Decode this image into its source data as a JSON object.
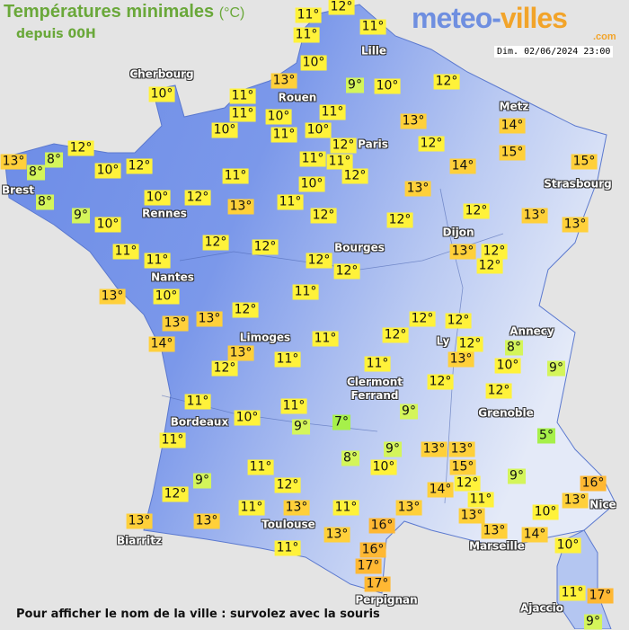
{
  "header": {
    "title": "Températures minimales",
    "unit": "(°C)",
    "subtitle": "depuis 00H",
    "logo_part1": "meteo-",
    "logo_part2": "villes",
    "logo_suffix": ".com",
    "datetime": "Dim. 02/06/2024 23:00"
  },
  "footer": "Pour afficher le nom de la ville : survolez avec la souris",
  "colors": {
    "land_west": "#6b8be6",
    "land_east": "#dfe6f8",
    "sea": "#e4e4e4",
    "temp_5_7": "#a6f04a",
    "temp_8_9": "#d4f55a",
    "temp_10_12": "#fff23a",
    "temp_13_15": "#ffd03a",
    "temp_16_17": "#ffb833",
    "title_green": "#6aa83a",
    "logo_blue": "#6f8fe0",
    "logo_orange": "#f2a42a"
  },
  "cities": [
    "Cherbourg",
    "Lille",
    "Rouen",
    "Paris",
    "Metz",
    "Strasbourg",
    "Brest",
    "Rennes",
    "Dijon",
    "Bourges",
    "Nantes",
    "Limoges",
    "Ly",
    "Annecy",
    "Clermont\nFerrand",
    "Grenoble",
    "Bordeaux",
    "Nice",
    "Toulouse",
    "Biarritz",
    "Marseille",
    "Perpignan",
    "Ajaccio"
  ],
  "temperatures": [
    11,
    12,
    11,
    11,
    10,
    13,
    9,
    10,
    12,
    10,
    11,
    11,
    10,
    10,
    11,
    11,
    10,
    12,
    13,
    12,
    14,
    15,
    14,
    15,
    12,
    13,
    8,
    8,
    10,
    12,
    11,
    11,
    12,
    11,
    10,
    10,
    12,
    13,
    11,
    13,
    8,
    9,
    10,
    12,
    12,
    12,
    13,
    13,
    12,
    12,
    11,
    11,
    12,
    12,
    13,
    12,
    12,
    13,
    10,
    11,
    12,
    13,
    13,
    14,
    13,
    11,
    12,
    12,
    12,
    12,
    13,
    8,
    10,
    9,
    12,
    11,
    11,
    12,
    12,
    11,
    10,
    11,
    9,
    7,
    9,
    5,
    11,
    8,
    9,
    10,
    13,
    13,
    15,
    11,
    9,
    12,
    14,
    12,
    9,
    16,
    12,
    11,
    13,
    11,
    13,
    11,
    13,
    13,
    13,
    10,
    13,
    13,
    16,
    13,
    14,
    10,
    11,
    16,
    17,
    17,
    11,
    17,
    9
  ],
  "temp_unit": "°"
}
